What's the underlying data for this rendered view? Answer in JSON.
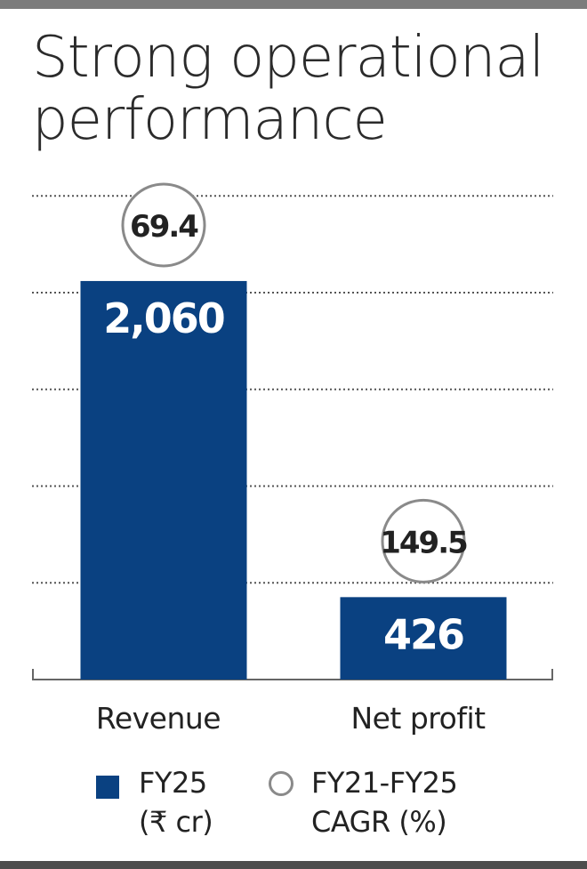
{
  "chart_data": {
    "type": "bar",
    "title": "Strong operational performance",
    "title_lines": [
      "Strong operational",
      "performance"
    ],
    "categories": [
      "Revenue",
      "Net profit"
    ],
    "series": [
      {
        "name": "FY25 (₹ cr)",
        "values": [
          2060,
          426
        ],
        "labels": [
          "2,060",
          "426"
        ]
      },
      {
        "name": "FY21-FY25 CAGR (%)",
        "values": [
          69.4,
          149.5
        ],
        "labels": [
          "69.4",
          "149.5"
        ]
      }
    ],
    "ylim": [
      0,
      2500
    ],
    "grid": true,
    "legend_position": "bottom",
    "colors": {
      "bar": "#0a4181",
      "circle_border": "#8a8a8a",
      "grid": "#555555",
      "text": "#222222"
    }
  },
  "legend": {
    "fy25_line1": "FY25",
    "fy25_line2": "(₹ cr)",
    "cagr_line1": "FY21-FY25",
    "cagr_line2": "CAGR (%)"
  }
}
